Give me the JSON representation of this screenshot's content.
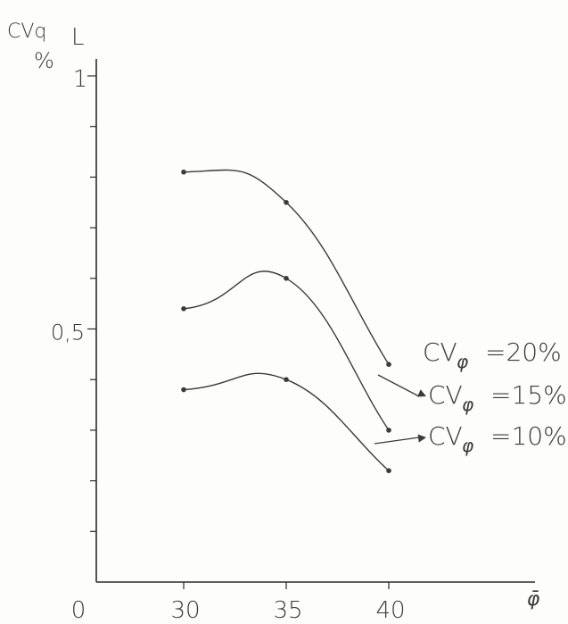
{
  "chart_data": {
    "type": "line",
    "ylabel_top": "CVq",
    "ylabel_sub": "L",
    "ylabel_unit": "%",
    "xlabel": "φ̄",
    "origin_label": "0",
    "x": [
      30,
      35,
      40
    ],
    "xlim": [
      26,
      50
    ],
    "ylim": [
      0,
      1
    ],
    "x_tick_labels": [
      "30",
      "35",
      "40"
    ],
    "y_tick_labels": [
      {
        "value": 0.5,
        "label": "0,5"
      },
      {
        "value": 1.0,
        "label": "1"
      }
    ],
    "y_minor_ticks": [
      0.1,
      0.2,
      0.3,
      0.4,
      0.6,
      0.7,
      0.8,
      0.9
    ],
    "grid": false,
    "series": [
      {
        "name": "CVφ =20%",
        "label_main": "CV",
        "label_sub": "φ",
        "label_val": "=20%",
        "values": [
          0.81,
          0.75,
          0.43
        ]
      },
      {
        "name": "CVφ =15%",
        "label_main": "CV",
        "label_sub": "φ",
        "label_val": "=15%",
        "values": [
          0.54,
          0.6,
          0.3
        ]
      },
      {
        "name": "CVφ =10%",
        "label_main": "CV",
        "label_sub": "φ",
        "label_val": "=10%",
        "values": [
          0.38,
          0.4,
          0.22
        ]
      }
    ]
  }
}
